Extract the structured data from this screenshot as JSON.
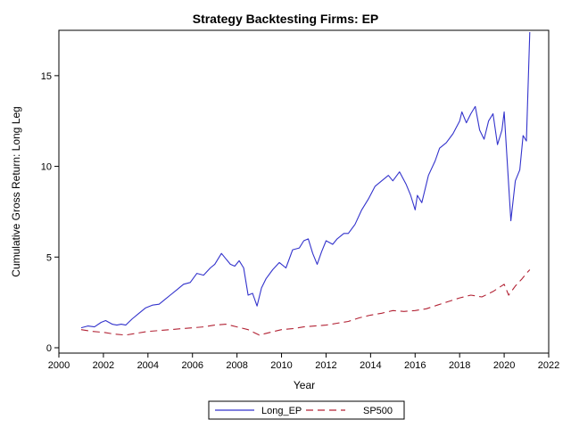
{
  "chart_data": {
    "type": "line",
    "title": "Strategy Backtesting  Firms: EP",
    "xlabel": "Year",
    "ylabel": "Cumulative Gross Return: Long Leg",
    "xlim": [
      2000,
      2022
    ],
    "ylim": [
      0,
      17.5
    ],
    "x_ticks": [
      2000,
      2002,
      2004,
      2006,
      2008,
      2010,
      2012,
      2014,
      2016,
      2018,
      2020,
      2022
    ],
    "y_ticks": [
      0,
      5,
      10,
      15
    ],
    "grid": false,
    "legend_position": "bottom",
    "series": [
      {
        "name": "Long_EP",
        "color": "#3333cc",
        "style": "solid",
        "x": [
          2001.0,
          2001.3,
          2001.6,
          2001.9,
          2002.1,
          2002.4,
          2002.6,
          2002.8,
          2003.0,
          2003.3,
          2003.6,
          2003.9,
          2004.2,
          2004.5,
          2004.8,
          2005.0,
          2005.3,
          2005.6,
          2005.9,
          2006.2,
          2006.5,
          2006.8,
          2007.0,
          2007.3,
          2007.5,
          2007.7,
          2007.9,
          2008.1,
          2008.3,
          2008.5,
          2008.7,
          2008.9,
          2009.1,
          2009.3,
          2009.6,
          2009.9,
          2010.2,
          2010.5,
          2010.8,
          2011.0,
          2011.2,
          2011.4,
          2011.6,
          2011.8,
          2012.0,
          2012.3,
          2012.5,
          2012.8,
          2013.0,
          2013.3,
          2013.6,
          2013.9,
          2014.2,
          2014.5,
          2014.8,
          2015.0,
          2015.3,
          2015.6,
          2015.8,
          2016.0,
          2016.1,
          2016.3,
          2016.6,
          2016.9,
          2017.1,
          2017.4,
          2017.7,
          2018.0,
          2018.1,
          2018.3,
          2018.5,
          2018.7,
          2018.9,
          2019.1,
          2019.3,
          2019.5,
          2019.7,
          2019.9,
          2020.0,
          2020.1,
          2020.3,
          2020.5,
          2020.7,
          2020.85,
          2021.0,
          2021.15
        ],
        "y": [
          1.1,
          1.2,
          1.15,
          1.4,
          1.5,
          1.3,
          1.25,
          1.3,
          1.25,
          1.6,
          1.9,
          2.2,
          2.35,
          2.4,
          2.7,
          2.9,
          3.2,
          3.5,
          3.6,
          4.1,
          4.0,
          4.4,
          4.6,
          5.2,
          4.9,
          4.6,
          4.5,
          4.8,
          4.4,
          2.9,
          3.0,
          2.3,
          3.3,
          3.8,
          4.3,
          4.7,
          4.4,
          5.4,
          5.5,
          5.9,
          6.0,
          5.2,
          4.6,
          5.3,
          5.9,
          5.7,
          6.0,
          6.3,
          6.3,
          6.8,
          7.6,
          8.2,
          8.9,
          9.2,
          9.5,
          9.2,
          9.7,
          9.0,
          8.4,
          7.6,
          8.4,
          8.0,
          9.5,
          10.3,
          11.0,
          11.3,
          11.8,
          12.5,
          13.0,
          12.4,
          12.9,
          13.3,
          12.0,
          11.5,
          12.5,
          12.9,
          11.2,
          12.0,
          13.0,
          11.0,
          7.0,
          9.2,
          9.8,
          11.7,
          11.4,
          17.4
        ]
      },
      {
        "name": "SP500",
        "color": "#b22234",
        "style": "dashed",
        "x": [
          2001.0,
          2001.5,
          2002.0,
          2002.5,
          2003.0,
          2003.5,
          2004.0,
          2004.5,
          2005.0,
          2005.5,
          2006.0,
          2006.5,
          2007.0,
          2007.5,
          2008.0,
          2008.5,
          2009.0,
          2009.5,
          2010.0,
          2010.5,
          2011.0,
          2011.5,
          2012.0,
          2012.5,
          2013.0,
          2013.5,
          2014.0,
          2014.5,
          2015.0,
          2015.5,
          2016.0,
          2016.5,
          2017.0,
          2017.5,
          2018.0,
          2018.5,
          2019.0,
          2019.5,
          2020.0,
          2020.2,
          2020.5,
          2020.8,
          2021.0,
          2021.15
        ],
        "y": [
          1.0,
          0.9,
          0.85,
          0.75,
          0.7,
          0.8,
          0.9,
          0.95,
          1.0,
          1.05,
          1.1,
          1.15,
          1.25,
          1.3,
          1.15,
          1.0,
          0.7,
          0.85,
          1.0,
          1.05,
          1.15,
          1.2,
          1.25,
          1.35,
          1.45,
          1.65,
          1.8,
          1.9,
          2.05,
          2.0,
          2.05,
          2.15,
          2.35,
          2.55,
          2.75,
          2.9,
          2.8,
          3.1,
          3.5,
          2.9,
          3.4,
          3.8,
          4.1,
          4.3
        ]
      }
    ]
  }
}
